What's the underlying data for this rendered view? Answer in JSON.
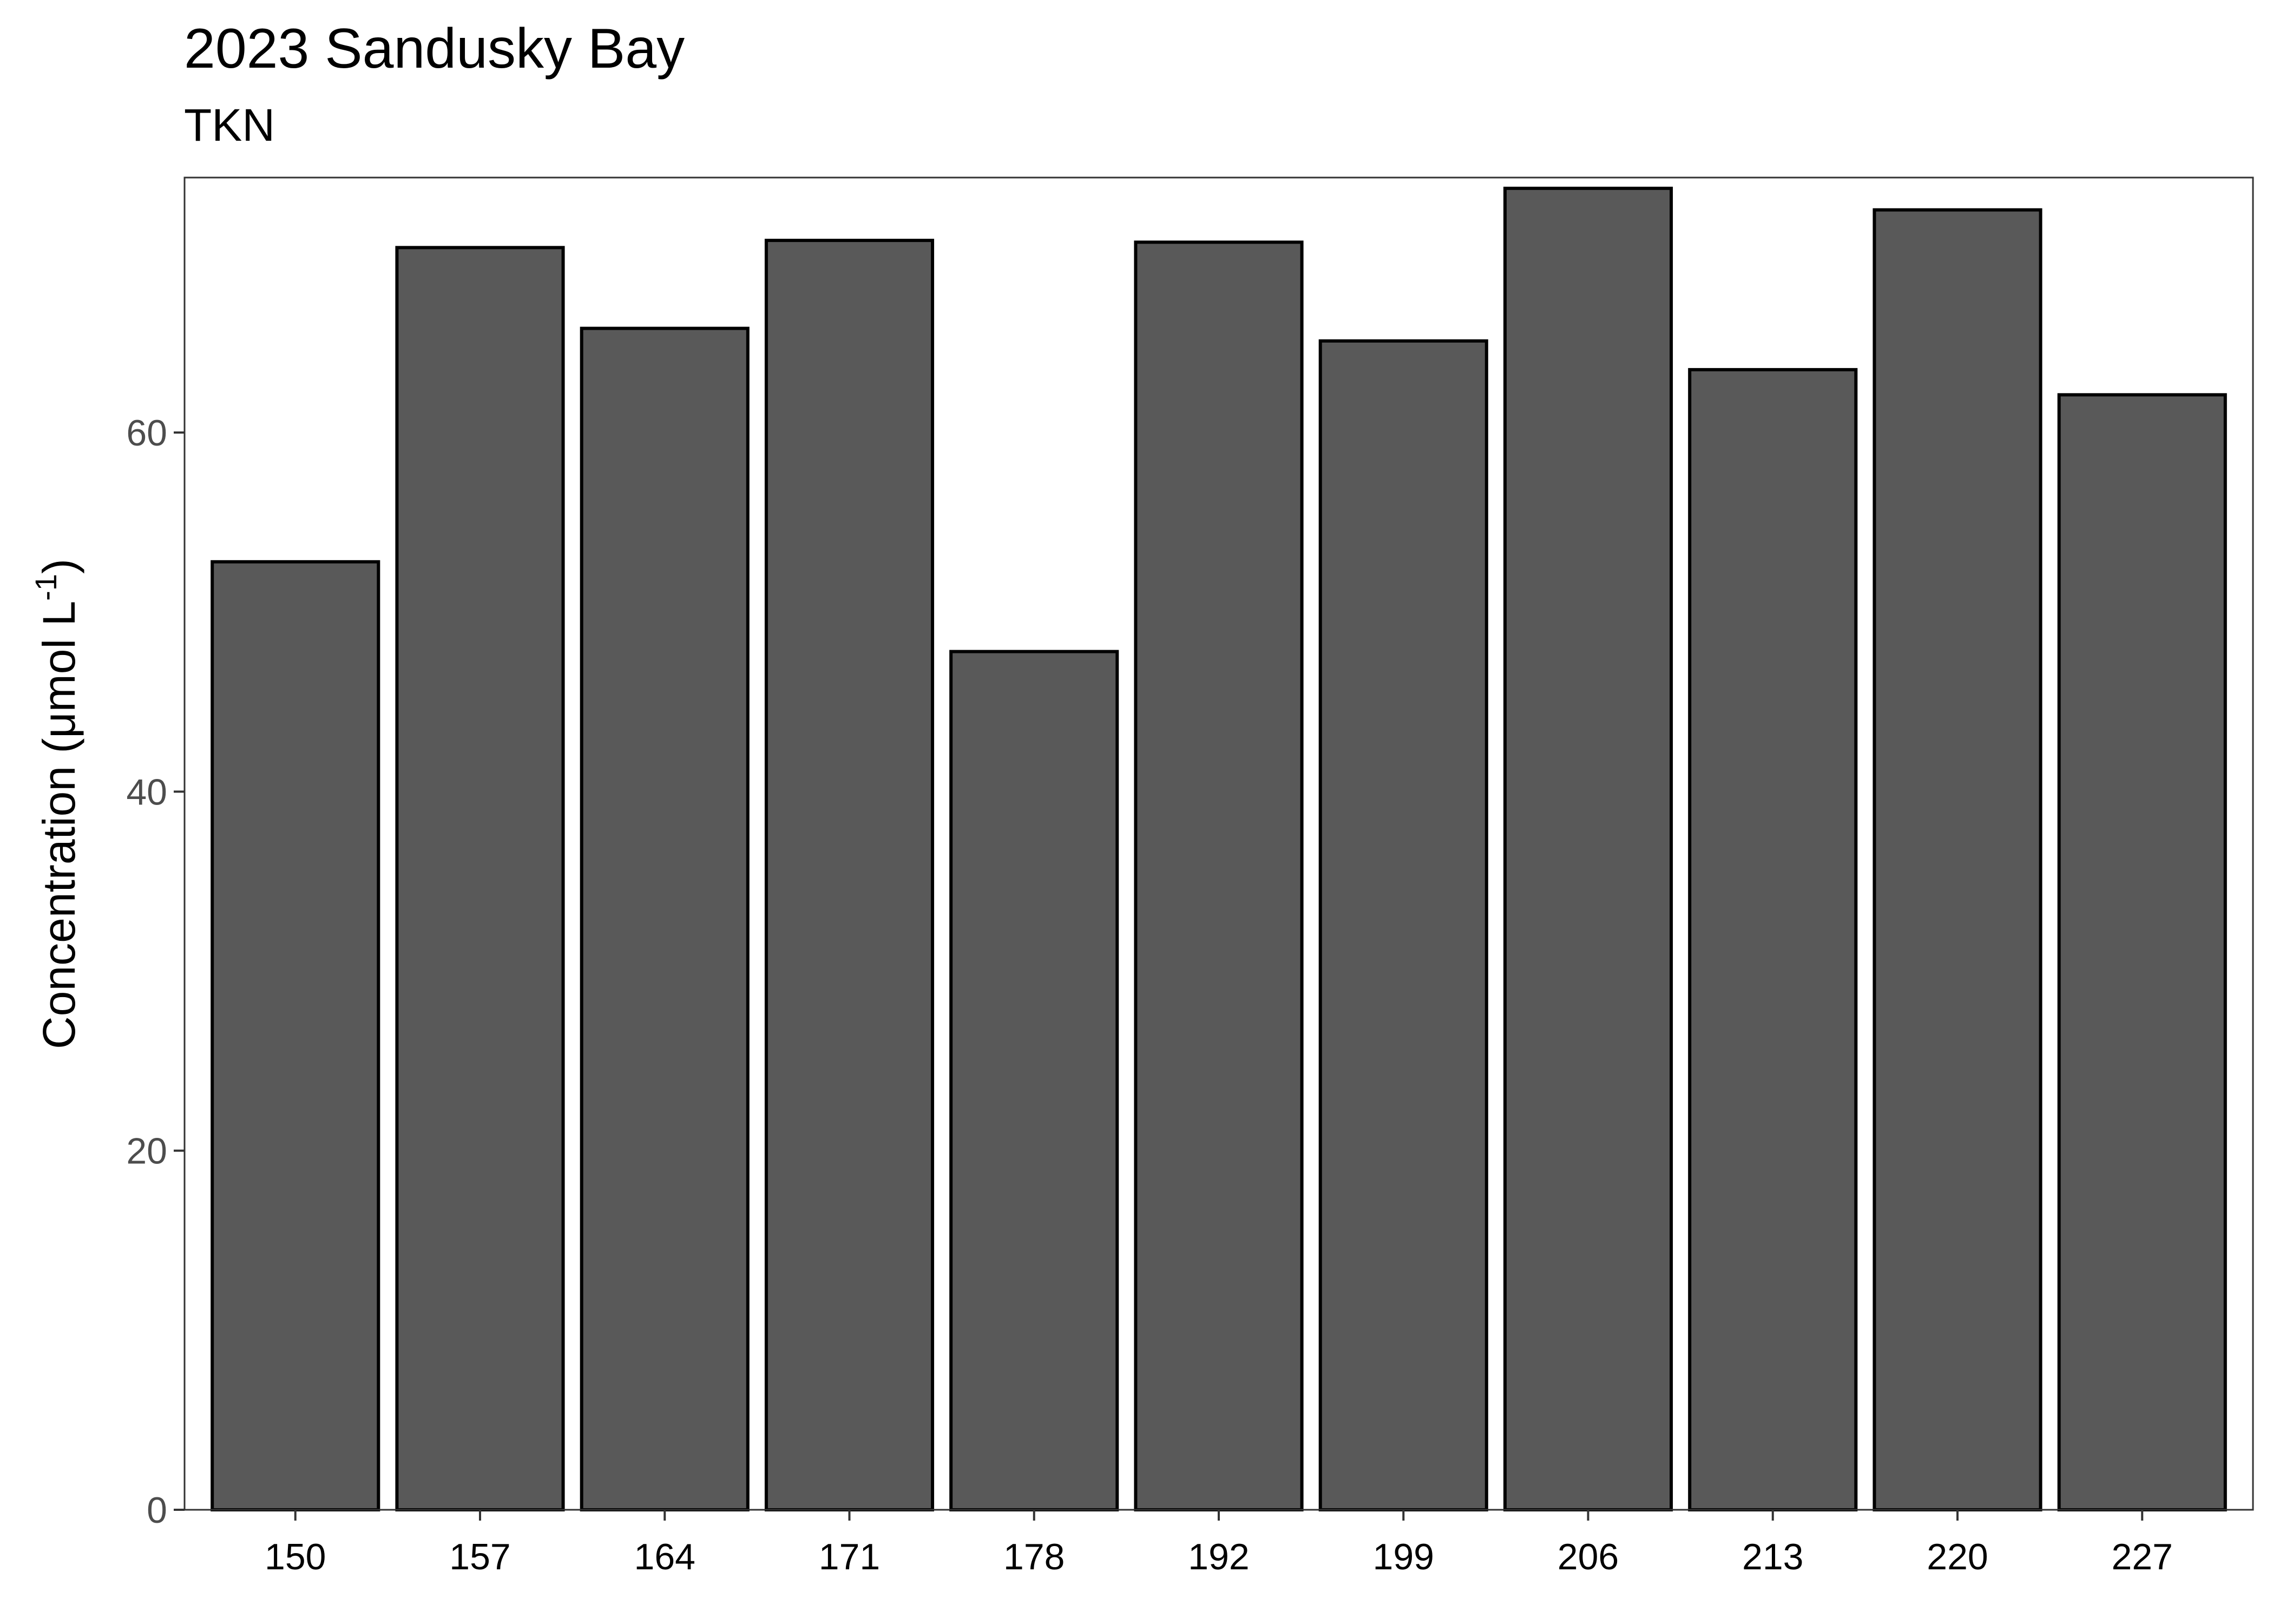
{
  "chart_data": {
    "type": "bar",
    "title": "2023 Sandusky Bay",
    "subtitle": "TKN",
    "xlabel": "",
    "ylabel": {
      "prefix": "Concentration (μmol L",
      "superscript": "-1",
      "suffix": ")"
    },
    "categories": [
      "150",
      "157",
      "164",
      "171",
      "178",
      "192",
      "199",
      "206",
      "213",
      "220",
      "227"
    ],
    "values": [
      52.8,
      70.3,
      65.8,
      70.7,
      47.8,
      70.6,
      65.1,
      73.6,
      63.5,
      72.4,
      62.1
    ],
    "yticks": [
      0,
      20,
      40,
      60
    ],
    "ylim": [
      0,
      74.2
    ],
    "grid": false,
    "legend": "none",
    "colors": {
      "bar_fill": "#595959",
      "bar_stroke": "#000000",
      "panel_border": "#333333",
      "tick_label": "#4d4d4d"
    }
  }
}
